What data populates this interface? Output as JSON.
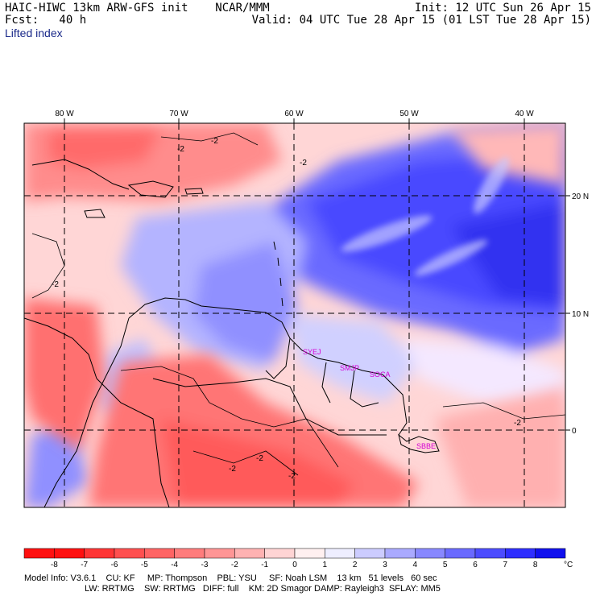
{
  "header": {
    "model_line": "HAIC-HIWC 13km ARW-GFS init    NCAR/MMM",
    "forecast_line": "Fcst:   40 h",
    "field_name": "Lifted index",
    "init_line": "Init: 12 UTC Sun 26 Apr 15",
    "valid_line": "Valid: 04 UTC Tue 28 Apr 15 (01 LST Tue 28 Apr 15)"
  },
  "map": {
    "lon_labels": [
      "80 W",
      "70 W",
      "60 W",
      "50 W",
      "40 W"
    ],
    "lat_labels": [
      "20 N",
      "10 N",
      "0"
    ],
    "contour_labels": [
      "-2",
      "-2",
      "-2",
      "-2",
      "-2",
      "-2",
      "-2",
      "-2"
    ],
    "stations": [
      "SYEJ",
      "SMJP",
      "SOCA",
      "SBBE"
    ],
    "station_color": "#d400d4"
  },
  "colorbar": {
    "ticks": [
      "-8",
      "-7",
      "-6",
      "-5",
      "-4",
      "-3",
      "-2",
      "-1",
      "0",
      "1",
      "2",
      "3",
      "4",
      "5",
      "6",
      "7",
      "8"
    ],
    "unit": "°C",
    "colors": [
      "#ff1010",
      "#ff3535",
      "#ff5050",
      "#ff6464",
      "#ff7c7c",
      "#ff9595",
      "#ffb2b2",
      "#ffd4d4",
      "#fff0f0",
      "#eeeeff",
      "#ccccff",
      "#aaaaff",
      "#8888ff",
      "#6a6aff",
      "#4c4cff",
      "#2e2eff",
      "#1010ee"
    ]
  },
  "footer": {
    "line1": "Model Info: V3.6.1    CU: KF     MP: Thompson    PBL: YSU     SF: Noah LSM    13 km   51 levels   60 sec",
    "line2": "LW: RRTMG    SW: RRTMG   DIFF: full    KM: 2D Smagor DAMP: Rayleigh3  SFLAY: MM5"
  }
}
